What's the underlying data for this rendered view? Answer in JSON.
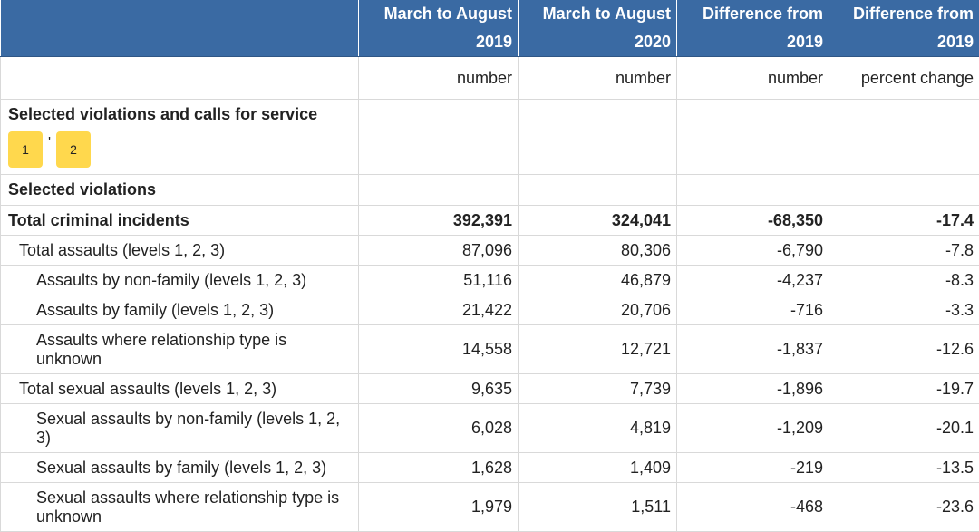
{
  "header": {
    "col0": "",
    "col1": [
      "March to August",
      "2019"
    ],
    "col2": [
      "March to August",
      "2020"
    ],
    "col3": [
      "Difference from",
      "2019"
    ],
    "col4": [
      "Difference from",
      "2019"
    ]
  },
  "units": [
    "",
    "number",
    "number",
    "number",
    "percent change"
  ],
  "section": {
    "title": "Selected violations and calls for service",
    "footnotes": [
      "1",
      "2"
    ],
    "footnote_separator": "'"
  },
  "subsection": "Selected violations",
  "rows": [
    {
      "label": "Total criminal incidents",
      "v2019": "392,391",
      "v2020": "324,041",
      "diff": "-68,350",
      "pct": "-17.4"
    },
    {
      "label": "Total assaults (levels 1, 2, 3)",
      "v2019": "87,096",
      "v2020": "80,306",
      "diff": "-6,790",
      "pct": "-7.8"
    },
    {
      "label": "Assaults by non-family (levels 1, 2, 3)",
      "v2019": "51,116",
      "v2020": "46,879",
      "diff": "-4,237",
      "pct": "-8.3"
    },
    {
      "label": "Assaults by family (levels 1, 2, 3)",
      "v2019": "21,422",
      "v2020": "20,706",
      "diff": "-716",
      "pct": "-3.3"
    },
    {
      "label": "Assaults where relationship type is unknown",
      "v2019": "14,558",
      "v2020": "12,721",
      "diff": "-1,837",
      "pct": "-12.6"
    },
    {
      "label": "Total sexual assaults (levels 1, 2, 3)",
      "v2019": "9,635",
      "v2020": "7,739",
      "diff": "-1,896",
      "pct": "-19.7"
    },
    {
      "label": "Sexual assaults by non-family (levels 1, 2, 3)",
      "v2019": "6,028",
      "v2020": "4,819",
      "diff": "-1,209",
      "pct": "-20.1"
    },
    {
      "label": "Sexual assaults by family (levels 1, 2, 3)",
      "v2019": "1,628",
      "v2020": "1,409",
      "diff": "-219",
      "pct": "-13.5"
    },
    {
      "label": "Sexual assaults where relationship type is unknown",
      "v2019": "1,979",
      "v2020": "1,511",
      "diff": "-468",
      "pct": "-23.6"
    }
  ]
}
